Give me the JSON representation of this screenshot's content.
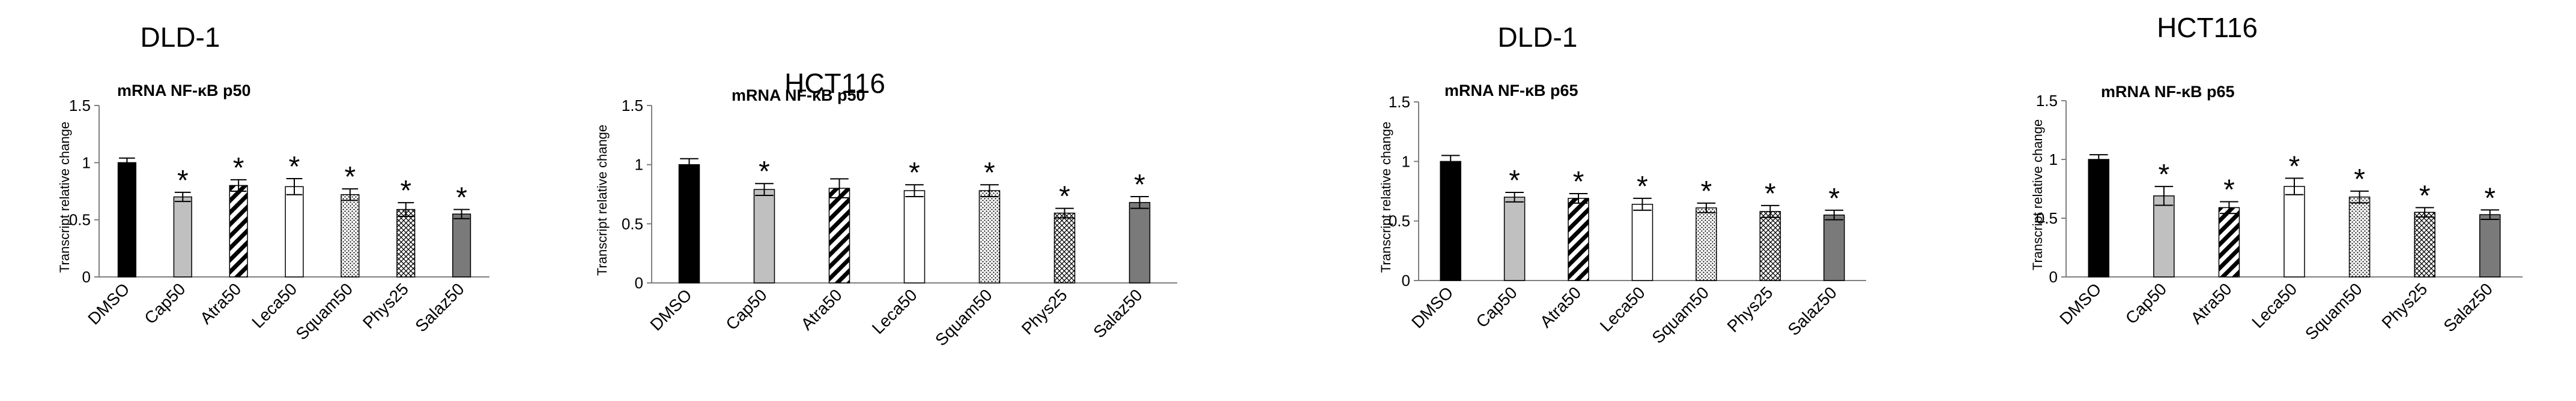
{
  "chart_data": [
    {
      "type": "bar",
      "panel_title": "DLD-1",
      "title": "mRNA NF-κB p50",
      "ylabel": "Transcript relative change",
      "ylim": [
        0,
        1.5
      ],
      "yticks": [
        "0",
        "0.5",
        "1",
        "1.5"
      ],
      "categories": [
        "DMSO",
        "Cap50",
        "Atra50",
        "Leca50",
        "Squam50",
        "Phys25",
        "Salaz50"
      ],
      "values": [
        1.0,
        0.7,
        0.8,
        0.79,
        0.72,
        0.59,
        0.55
      ],
      "errors": [
        0.04,
        0.04,
        0.05,
        0.07,
        0.05,
        0.06,
        0.04
      ],
      "significance": [
        "",
        "*",
        "*",
        "*",
        "*",
        "*",
        "*"
      ],
      "fills": [
        "black",
        "lightgray",
        "diagonal",
        "white",
        "dots",
        "cross",
        "gray"
      ]
    },
    {
      "type": "bar",
      "panel_title": "HCT116",
      "title": "mRNA NF-κB p50",
      "ylabel": "Transcript relative change",
      "ylim": [
        0,
        1.5
      ],
      "yticks": [
        "0",
        "0.5",
        "1",
        "1.5"
      ],
      "categories": [
        "DMSO",
        "Cap50",
        "Atra50",
        "Leca50",
        "Squam50",
        "Phys25",
        "Salaz50"
      ],
      "values": [
        1.0,
        0.79,
        0.8,
        0.78,
        0.78,
        0.59,
        0.68
      ],
      "errors": [
        0.05,
        0.05,
        0.08,
        0.05,
        0.05,
        0.04,
        0.05
      ],
      "significance": [
        "",
        "*",
        "",
        "*",
        "*",
        "*",
        "*"
      ],
      "fills": [
        "black",
        "lightgray",
        "diagonal",
        "white",
        "dots",
        "cross",
        "gray"
      ]
    },
    {
      "type": "bar",
      "panel_title": "DLD-1",
      "title": "mRNA NF-κB p65",
      "ylabel": "Transcript relative change",
      "ylim": [
        0,
        1.5
      ],
      "yticks": [
        "0",
        "0.5",
        "1",
        "1.5"
      ],
      "categories": [
        "DMSO",
        "Cap50",
        "Atra50",
        "Leca50",
        "Squam50",
        "Phys25",
        "Salaz50"
      ],
      "values": [
        1.0,
        0.7,
        0.69,
        0.64,
        0.61,
        0.58,
        0.55
      ],
      "errors": [
        0.05,
        0.04,
        0.04,
        0.05,
        0.04,
        0.05,
        0.04
      ],
      "significance": [
        "",
        "*",
        "*",
        "*",
        "*",
        "*",
        "*"
      ],
      "fills": [
        "black",
        "lightgray",
        "diagonal",
        "white",
        "dots",
        "cross",
        "gray"
      ]
    },
    {
      "type": "bar",
      "panel_title": "HCT116",
      "title": "mRNA NF-κB p65",
      "ylabel": "Transcript relative change",
      "ylim": [
        0,
        1.5
      ],
      "yticks": [
        "0",
        "0.5",
        "1",
        "1.5"
      ],
      "categories": [
        "DMSO",
        "Cap50",
        "Atra50",
        "Leca50",
        "Squam50",
        "Phys25",
        "Salaz50"
      ],
      "values": [
        1.0,
        0.69,
        0.59,
        0.77,
        0.68,
        0.55,
        0.53
      ],
      "errors": [
        0.04,
        0.08,
        0.05,
        0.07,
        0.05,
        0.04,
        0.04
      ],
      "significance": [
        "",
        "*",
        "*",
        "*",
        "*",
        "*",
        "*"
      ],
      "fills": [
        "black",
        "lightgray",
        "diagonal",
        "white",
        "dots",
        "cross",
        "gray"
      ]
    }
  ],
  "colors": {
    "black_fill": "#000000",
    "lightgray_fill": "#c0c0c0",
    "gray_fill": "#7a7a7a",
    "white_fill": "#ffffff",
    "pattern_ink": "#000000",
    "axis": "#7f7f7f"
  }
}
